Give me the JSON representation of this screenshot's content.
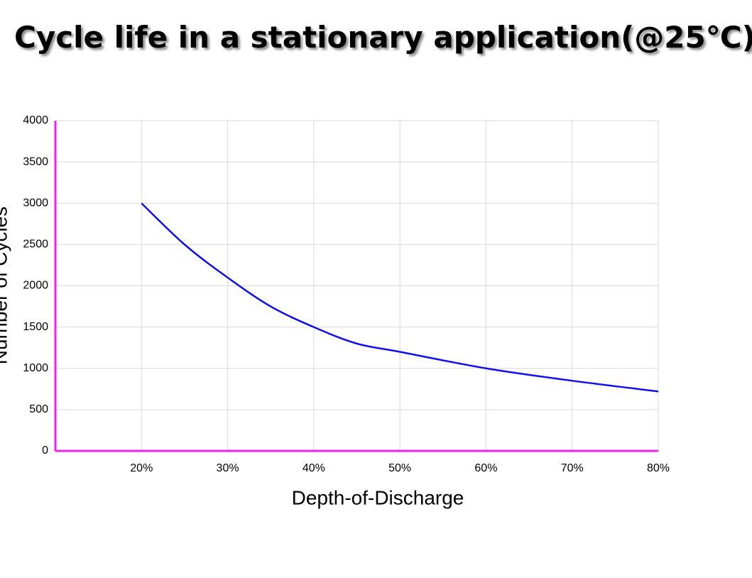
{
  "chart_data": {
    "type": "line",
    "title": "Cycle life in a stationary application(@25℃)",
    "x_label": "Depth-of-Discharge",
    "y_label": "Number of Cycles",
    "x": [
      20,
      25,
      30,
      35,
      40,
      45,
      50,
      60,
      70,
      80
    ],
    "series": [
      {
        "name": "Cycle life",
        "color": "#1010ee",
        "values": [
          3000,
          2500,
          2100,
          1750,
          1500,
          1300,
          1200,
          1000,
          850,
          720
        ]
      }
    ],
    "xlim": [
      10,
      80
    ],
    "xticks": [
      {
        "value": 20,
        "label": "20%"
      },
      {
        "value": 30,
        "label": "30%"
      },
      {
        "value": 40,
        "label": "40%"
      },
      {
        "value": 50,
        "label": "50%"
      },
      {
        "value": 60,
        "label": "60%"
      },
      {
        "value": 70,
        "label": "70%"
      },
      {
        "value": 80,
        "label": "80%"
      }
    ],
    "ylim": [
      0,
      4000
    ],
    "yticks": [
      0,
      500,
      1000,
      1500,
      2000,
      2500,
      3000,
      3500,
      4000
    ],
    "grid": true,
    "axis_color": "#ee22ee"
  }
}
